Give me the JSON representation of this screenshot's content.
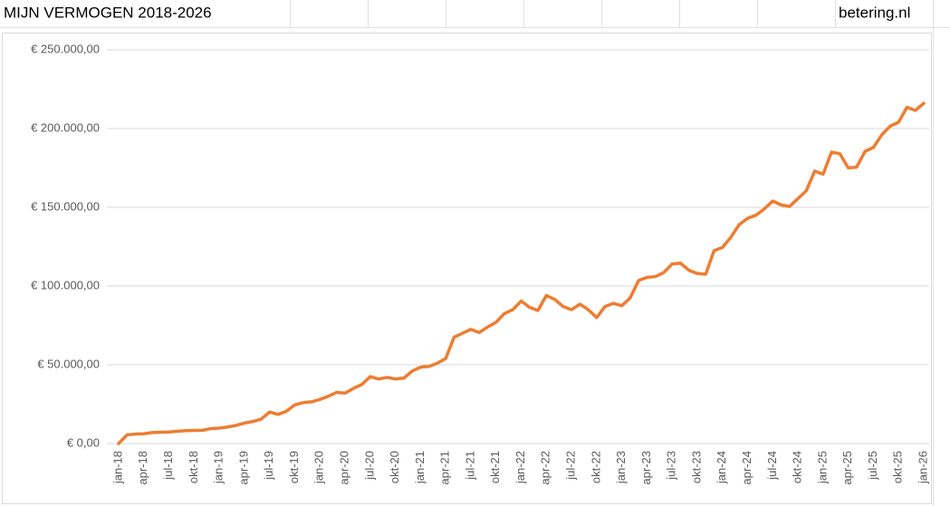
{
  "title_cell": "MIJN VERMOGEN 2018-2026",
  "source_cell": "betering.nl",
  "chart_data": {
    "type": "line",
    "color": "#ed7d31",
    "grid": true,
    "categories": [
      "jan-18",
      null,
      null,
      "apr-18",
      null,
      null,
      "jul-18",
      null,
      null,
      "okt-18",
      null,
      null,
      "jan-19",
      null,
      null,
      "apr-19",
      null,
      null,
      "jul-19",
      null,
      null,
      "okt-19",
      null,
      null,
      "jan-20",
      null,
      null,
      "apr-20",
      null,
      null,
      "jul-20",
      null,
      null,
      "okt-20",
      null,
      null,
      "jan-21",
      null,
      null,
      "apr-21",
      null,
      null,
      "jul-21",
      null,
      null,
      "okt-21",
      null,
      null,
      "jan-22",
      null,
      null,
      "apr-22",
      null,
      null,
      "jul-22",
      null,
      null,
      "okt-22",
      null,
      null,
      "jan-23",
      null,
      null,
      "apr-23",
      null,
      null,
      "jul-23",
      null,
      null,
      "okt-23",
      null,
      null,
      "jan-24",
      null,
      null,
      "apr-24",
      null,
      null,
      "jul-24",
      null,
      null,
      "okt-24",
      null,
      null,
      "jan-25",
      null,
      null,
      "apr-25",
      null,
      null,
      "jul-25",
      null,
      null,
      "okt-25",
      null,
      null,
      "jan-26"
    ],
    "values": [
      0,
      5500,
      6000,
      6200,
      7000,
      7200,
      7300,
      7800,
      8200,
      8300,
      8400,
      9500,
      9800,
      10500,
      11500,
      13000,
      14000,
      15500,
      20000,
      18500,
      20500,
      24500,
      26000,
      26500,
      28000,
      30000,
      32500,
      32000,
      35000,
      37500,
      42500,
      41000,
      42000,
      41000,
      41500,
      46000,
      48500,
      49000,
      51000,
      54000,
      67500,
      70000,
      72500,
      70500,
      74000,
      77000,
      82500,
      85000,
      90500,
      86500,
      84500,
      94000,
      91500,
      87000,
      85000,
      88500,
      85000,
      80000,
      87000,
      89000,
      87500,
      92500,
      103500,
      105500,
      106000,
      108500,
      114000,
      114500,
      110000,
      108000,
      107500,
      122500,
      124500,
      131000,
      139000,
      143000,
      145000,
      149000,
      154000,
      151500,
      150500,
      155500,
      160500,
      173000,
      171000,
      185000,
      184000,
      175000,
      175500,
      185500,
      188000,
      196000,
      201500,
      204000,
      213500,
      211500,
      216000
    ],
    "ylim": [
      0,
      250000
    ],
    "yticks": [
      {
        "value": 0,
        "label": "€ 0,00"
      },
      {
        "value": 50000,
        "label": "€ 50.000,00"
      },
      {
        "value": 100000,
        "label": "€ 100.000,00"
      },
      {
        "value": 150000,
        "label": "€ 150.000,00"
      },
      {
        "value": 200000,
        "label": "€ 200.000,00"
      },
      {
        "value": 250000,
        "label": "€ 250.000,00"
      }
    ]
  }
}
